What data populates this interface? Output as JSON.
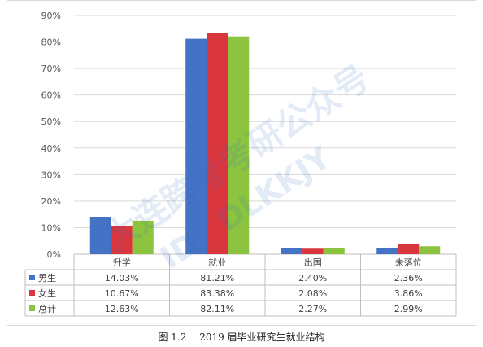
{
  "chart_data": {
    "type": "bar",
    "categories": [
      "升学",
      "就业",
      "出国",
      "未落位"
    ],
    "series": [
      {
        "name": "男生",
        "values": [
          14.03,
          81.21,
          2.4,
          2.36
        ],
        "labels": [
          "14.03%",
          "81.21%",
          "2.40%",
          "2.36%"
        ],
        "color": "#4472c4"
      },
      {
        "name": "女生",
        "values": [
          10.67,
          83.38,
          2.08,
          3.86
        ],
        "labels": [
          "10.67%",
          "83.38%",
          "2.08%",
          "3.86%"
        ],
        "color": "#d9363e"
      },
      {
        "name": "总计",
        "values": [
          12.63,
          82.11,
          2.27,
          2.99
        ],
        "labels": [
          "12.63%",
          "82.11%",
          "2.27%",
          "2.99%"
        ],
        "color": "#8cc43f"
      }
    ],
    "yticks": [
      "0%",
      "10%",
      "20%",
      "30%",
      "40%",
      "50%",
      "60%",
      "70%",
      "80%",
      "90%"
    ],
    "ylim": [
      0,
      90
    ],
    "grid": true,
    "legend": "data-table-left"
  },
  "caption": {
    "figure_number": "图 1.2",
    "title": "2019 届毕业研究生就业结构"
  },
  "watermark": {
    "text_top": "大连跨考考研公众号",
    "text_bottom": "ID：DLKKJY"
  }
}
